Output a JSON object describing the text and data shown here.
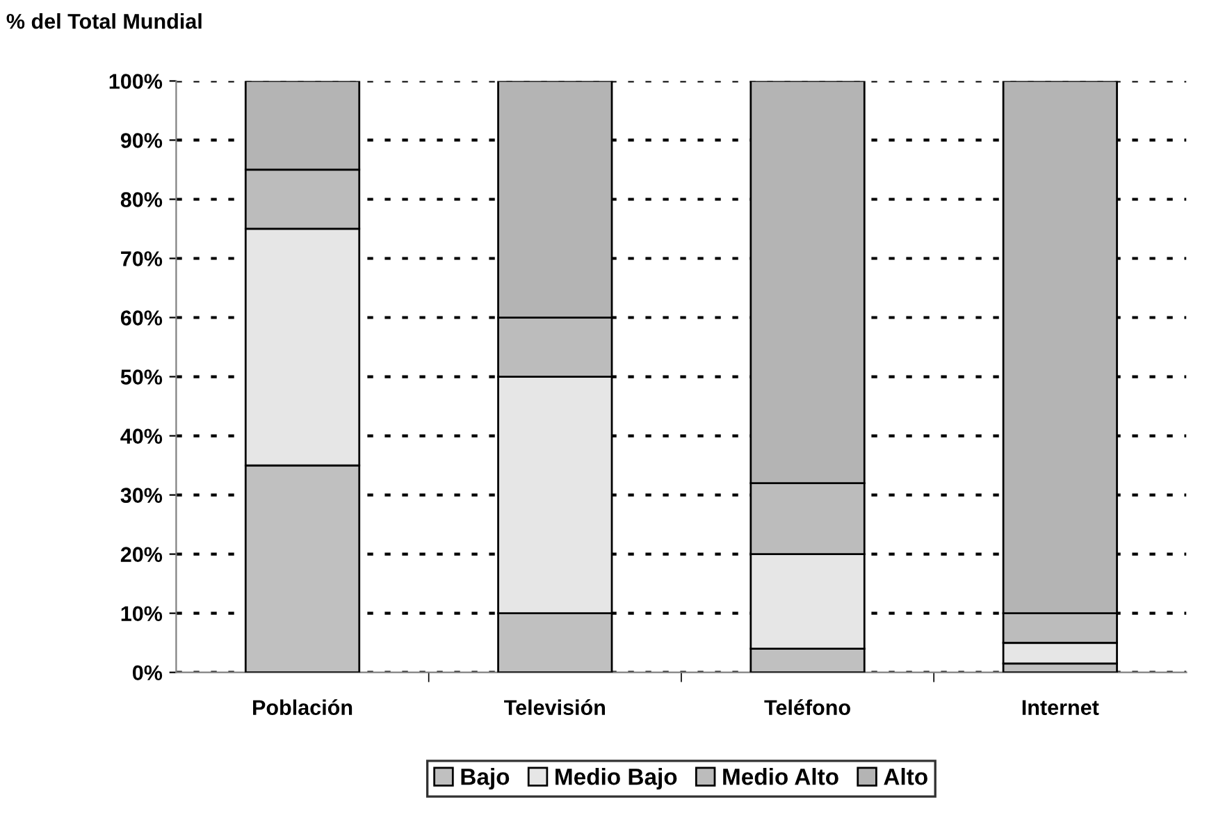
{
  "chart_data": {
    "type": "bar",
    "stacked": true,
    "ylabel": "% del Total Mundial",
    "categories": [
      "Población",
      "Televisión",
      "Teléfono",
      "Internet"
    ],
    "series": [
      {
        "name": "Bajo",
        "color": "#c0c0c0",
        "values": [
          35,
          10,
          4,
          1.5
        ]
      },
      {
        "name": "Medio Bajo",
        "color": "#e6e6e6",
        "values": [
          40,
          40,
          16,
          3.5
        ]
      },
      {
        "name": "Medio Alto",
        "color": "#bcbcbc",
        "values": [
          10,
          10,
          12,
          5
        ]
      },
      {
        "name": "Alto",
        "color": "#b4b4b4",
        "values": [
          15,
          40,
          68,
          90
        ]
      }
    ],
    "ylim": [
      0,
      100
    ],
    "yticks": [
      {
        "value": 0,
        "label": "0%"
      },
      {
        "value": 10,
        "label": "10%"
      },
      {
        "value": 20,
        "label": "20%"
      },
      {
        "value": 30,
        "label": "30%"
      },
      {
        "value": 40,
        "label": "40%"
      },
      {
        "value": 50,
        "label": "50%"
      },
      {
        "value": 60,
        "label": "60%"
      },
      {
        "value": 70,
        "label": "70%"
      },
      {
        "value": 80,
        "label": "80%"
      },
      {
        "value": 90,
        "label": "90%"
      },
      {
        "value": 100,
        "label": "100%"
      }
    ],
    "grid": "y",
    "legend": "bottom"
  }
}
